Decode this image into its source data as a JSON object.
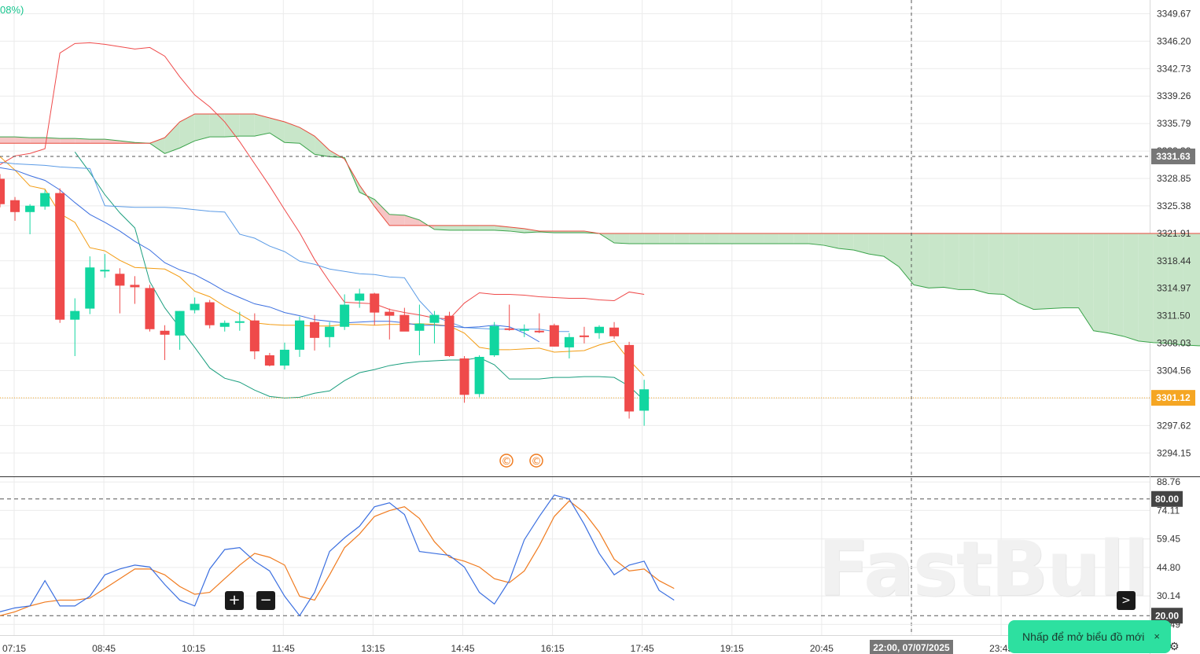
{
  "header": {
    "change_text": "08%)"
  },
  "watermark": "FastBull",
  "colors": {
    "grid": "#ebebeb",
    "up": "#12d6a0",
    "down": "#ef4a4a",
    "bb_upper": "#ef4a4a",
    "bb_mid": "#f39c12",
    "bb_lower": "#1a9e7e",
    "kijun": "#5b9be6",
    "tenkan": "#3b6fe0",
    "cloud_bull": "#c8e6c9",
    "cloud_bear": "#f6c5c5",
    "stoch_k": "#3b6fe0",
    "stoch_d": "#f07b1f",
    "last_price_tag": "#f5a623",
    "crosshair_tag": "#777777"
  },
  "chart_data": {
    "type": "candlestick",
    "main_y_ticks": [
      "3349.67",
      "3346.20",
      "3342.73",
      "3339.26",
      "3335.79",
      "3332.32",
      "3328.85",
      "3325.38",
      "3321.91",
      "3318.44",
      "3314.97",
      "3311.50",
      "3308.03",
      "3304.56",
      "3301.09",
      "3297.62",
      "3294.15"
    ],
    "main_ylim": [
      3291.2,
      3351.4
    ],
    "x_ticks": [
      "07:15",
      "08:45",
      "10:15",
      "11:45",
      "13:15",
      "14:45",
      "16:15",
      "17:45",
      "19:15",
      "20:45",
      "22:00, 07/07/2025",
      "23:45"
    ],
    "crosshair": {
      "price": "3331.63",
      "time": "22:00, 07/07/2025"
    },
    "last_price": "3301.12",
    "candles": [
      {
        "o": 3328.8,
        "h": 3329.4,
        "l": 3325.2,
        "c": 3325.6
      },
      {
        "o": 3326.1,
        "h": 3326.5,
        "l": 3323.5,
        "c": 3324.6
      },
      {
        "o": 3324.6,
        "h": 3325.6,
        "l": 3321.8,
        "c": 3325.4
      },
      {
        "o": 3325.3,
        "h": 3327.4,
        "l": 3324.9,
        "c": 3327.0
      },
      {
        "o": 3327.0,
        "h": 3327.6,
        "l": 3310.6,
        "c": 3311.0
      },
      {
        "o": 3311.0,
        "h": 3313.7,
        "l": 3306.4,
        "c": 3312.1
      },
      {
        "o": 3312.4,
        "h": 3319.0,
        "l": 3311.7,
        "c": 3317.6
      },
      {
        "o": 3317.1,
        "h": 3319.3,
        "l": 3316.3,
        "c": 3317.3
      },
      {
        "o": 3316.8,
        "h": 3317.5,
        "l": 3311.8,
        "c": 3315.3
      },
      {
        "o": 3315.4,
        "h": 3316.5,
        "l": 3313.0,
        "c": 3315.1
      },
      {
        "o": 3315.0,
        "h": 3315.4,
        "l": 3309.5,
        "c": 3309.8
      },
      {
        "o": 3309.6,
        "h": 3310.3,
        "l": 3305.9,
        "c": 3309.1
      },
      {
        "o": 3309.0,
        "h": 3312.1,
        "l": 3307.2,
        "c": 3312.1
      },
      {
        "o": 3312.2,
        "h": 3313.8,
        "l": 3311.8,
        "c": 3313.0
      },
      {
        "o": 3313.2,
        "h": 3313.5,
        "l": 3309.9,
        "c": 3310.3
      },
      {
        "o": 3310.1,
        "h": 3310.9,
        "l": 3309.5,
        "c": 3310.6
      },
      {
        "o": 3310.6,
        "h": 3312.0,
        "l": 3309.6,
        "c": 3310.8
      },
      {
        "o": 3310.9,
        "h": 3311.8,
        "l": 3306.0,
        "c": 3307.0
      },
      {
        "o": 3306.5,
        "h": 3306.8,
        "l": 3305.1,
        "c": 3305.2
      },
      {
        "o": 3305.2,
        "h": 3308.1,
        "l": 3304.7,
        "c": 3307.2
      },
      {
        "o": 3307.2,
        "h": 3311.4,
        "l": 3306.3,
        "c": 3310.9
      },
      {
        "o": 3310.7,
        "h": 3311.6,
        "l": 3307.1,
        "c": 3308.7
      },
      {
        "o": 3308.8,
        "h": 3310.7,
        "l": 3307.5,
        "c": 3310.1
      },
      {
        "o": 3310.1,
        "h": 3314.2,
        "l": 3309.7,
        "c": 3312.9
      },
      {
        "o": 3313.4,
        "h": 3314.9,
        "l": 3312.5,
        "c": 3314.3
      },
      {
        "o": 3314.3,
        "h": 3314.4,
        "l": 3310.3,
        "c": 3311.9
      },
      {
        "o": 3312.0,
        "h": 3312.4,
        "l": 3308.5,
        "c": 3311.5
      },
      {
        "o": 3311.6,
        "h": 3312.5,
        "l": 3309.6,
        "c": 3309.5
      },
      {
        "o": 3309.6,
        "h": 3312.9,
        "l": 3306.5,
        "c": 3310.5
      },
      {
        "o": 3310.6,
        "h": 3312.1,
        "l": 3308.0,
        "c": 3311.6
      },
      {
        "o": 3311.5,
        "h": 3312.0,
        "l": 3306.3,
        "c": 3306.4
      },
      {
        "o": 3306.1,
        "h": 3306.4,
        "l": 3300.5,
        "c": 3301.5
      },
      {
        "o": 3301.6,
        "h": 3306.5,
        "l": 3301.2,
        "c": 3306.3
      },
      {
        "o": 3306.5,
        "h": 3310.7,
        "l": 3306.3,
        "c": 3310.2
      },
      {
        "o": 3309.9,
        "h": 3312.9,
        "l": 3309.6,
        "c": 3309.7
      },
      {
        "o": 3309.6,
        "h": 3310.4,
        "l": 3308.8,
        "c": 3309.8
      },
      {
        "o": 3309.6,
        "h": 3311.8,
        "l": 3309.3,
        "c": 3309.4
      },
      {
        "o": 3310.3,
        "h": 3310.5,
        "l": 3307.6,
        "c": 3307.6
      },
      {
        "o": 3307.5,
        "h": 3309.3,
        "l": 3306.1,
        "c": 3308.8
      },
      {
        "o": 3309.0,
        "h": 3310.1,
        "l": 3308.0,
        "c": 3308.8
      },
      {
        "o": 3309.3,
        "h": 3310.3,
        "l": 3308.6,
        "c": 3310.1
      },
      {
        "o": 3310.0,
        "h": 3310.7,
        "l": 3308.6,
        "c": 3308.9
      },
      {
        "o": 3307.8,
        "h": 3308.2,
        "l": 3298.5,
        "c": 3299.4
      },
      {
        "o": 3299.5,
        "h": 3303.4,
        "l": 3297.6,
        "c": 3302.2
      }
    ],
    "bb_upper": [
      3330.6,
      3331.7,
      3332.0,
      3332.6,
      3344.7,
      3345.9,
      3346.0,
      3345.8,
      3345.5,
      3345.2,
      3345.4,
      3344.3,
      3341.7,
      3339.4,
      3337.9,
      3336.0,
      3333.5,
      3330.7,
      3327.9,
      3324.9,
      3322.0,
      3318.6,
      3315.8,
      3313.2,
      3313.1,
      3313.0,
      3312.3,
      3311.9,
      3311.6,
      3311.2,
      3311.1,
      3313.1,
      3314.4,
      3314.2,
      3314.2,
      3314.1,
      3313.9,
      3313.8,
      3313.7,
      3313.7,
      3313.5,
      3313.4,
      3314.5,
      3314.2
    ],
    "bb_mid": [
      3331.6,
      3329.9,
      3327.9,
      3327.5,
      3324.4,
      3323.3,
      3320.1,
      3319.7,
      3318.5,
      3317.6,
      3317.5,
      3317.4,
      3316.4,
      3314.6,
      3313.9,
      3312.7,
      3311.7,
      3310.6,
      3310.4,
      3310.3,
      3310.3,
      3310.2,
      3310.2,
      3310.4,
      3310.4,
      3310.3,
      3310.4,
      3310.4,
      3310.5,
      3310.4,
      3310.2,
      3309.3,
      3307.5,
      3307.2,
      3307.2,
      3307.3,
      3307.4,
      3306.9,
      3307.0,
      3307.1,
      3307.8,
      3308.3,
      3305.9,
      3303.9
    ],
    "bb_lower": [
      3332.2,
      3329.6,
      3326.8,
      3324.5,
      3322.6,
      3315.8,
      3312.5,
      3310.0,
      3307.5,
      3304.9,
      3303.6,
      3303.1,
      3302.1,
      3301.3,
      3301.1,
      3301.2,
      3301.7,
      3302.0,
      3303.3,
      3304.3,
      3304.7,
      3305.2,
      3305.5,
      3305.7,
      3305.8,
      3305.9,
      3305.9,
      3306.2,
      3305.3,
      3303.5,
      3303.5,
      3303.5,
      3303.7,
      3303.7,
      3303.8,
      3303.8,
      3303.7,
      3302.6,
      3300.8
    ],
    "tenkan": [
      3330.2,
      3329.9,
      3329.2,
      3328.6,
      3327.4,
      3325.8,
      3324.3,
      3323.3,
      3322.2,
      3320.9,
      3319.8,
      3318.2,
      3317.3,
      3316.7,
      3315.7,
      3314.6,
      3313.8,
      3313.0,
      3312.6,
      3311.9,
      3311.5,
      3311.0,
      3310.8,
      3310.6,
      3310.7,
      3310.8,
      3310.8,
      3310.6,
      3310.3,
      3310.3,
      3310.2,
      3310.0,
      3310.1,
      3310.3,
      3310.1,
      3309.3,
      3308.2
    ],
    "kijun": [
      3330.9,
      3330.7,
      3330.6,
      3330.5,
      3330.3,
      3330.2,
      3330.1,
      3325.4,
      3325.3,
      3325.2,
      3325.2,
      3325.2,
      3325.1,
      3324.9,
      3324.7,
      3324.6,
      3321.8,
      3321.3,
      3320.3,
      3319.6,
      3318.4,
      3318.0,
      3317.4,
      3317.1,
      3316.8,
      3316.7,
      3316.4,
      3316.3,
      3313.4,
      3311.4,
      3310.7,
      3310.0,
      3309.9,
      3309.8,
      3309.8,
      3309.8,
      3309.8,
      3309.5,
      3309.5
    ],
    "cloud_span_a": [
      3334.1,
      3334.1,
      3334.0,
      3334.0,
      3333.9,
      3333.9,
      3333.8,
      3333.8,
      3333.6,
      3333.4,
      3333.3,
      3332.0,
      3332.7,
      3333.6,
      3334.1,
      3334.1,
      3334.2,
      3334.2,
      3334.6,
      3333.4,
      3333.3,
      3331.9,
      3331.6,
      3331.5,
      3327.1,
      3326.2,
      3324.3,
      3324.2,
      3323.6,
      3322.4,
      3322.3,
      3322.3,
      3322.3,
      3322.3,
      3322.2,
      3322.0,
      3322.1,
      3322.0,
      3322.0,
      3322.0,
      3321.9,
      3320.7,
      3320.6,
      3320.6,
      3320.6,
      3320.6,
      3320.6,
      3320.6,
      3320.6,
      3320.6,
      3320.6,
      3320.6,
      3320.6,
      3320.6,
      3320.6,
      3320.4,
      3320.0,
      3319.8,
      3319.3,
      3319.0,
      3317.7,
      3315.4,
      3315.0,
      3315.1,
      3314.8,
      3314.8,
      3314.3,
      3314.2,
      3313.1,
      3312.3,
      3312.4,
      3312.5,
      3312.5,
      3309.6,
      3309.3,
      3308.9,
      3308.3,
      3308.1,
      3308.0,
      3307.8,
      3307.7,
      3307.7,
      3307.6,
      3307.6,
      3307.6,
      3307.6,
      3307.6,
      3307.5,
      3306.8,
      3305.6
    ],
    "cloud_span_b": [
      3333.3,
      3333.3,
      3333.3,
      3333.3,
      3333.3,
      3333.3,
      3333.3,
      3333.3,
      3333.3,
      3333.3,
      3333.3,
      3334.0,
      3336.0,
      3337.0,
      3337.0,
      3337.0,
      3337.0,
      3337.0,
      3336.5,
      3336.0,
      3335.3,
      3334.2,
      3332.4,
      3331.3,
      3328.0,
      3325.3,
      3322.9,
      3322.9,
      3322.9,
      3322.9,
      3322.9,
      3322.9,
      3322.9,
      3322.9,
      3322.7,
      3322.5,
      3322.2,
      3322.2,
      3322.2,
      3322.2,
      3321.9,
      3321.9,
      3321.9,
      3321.9,
      3321.9,
      3321.9,
      3321.9,
      3321.9,
      3321.9,
      3321.9,
      3321.9,
      3321.9,
      3321.9,
      3321.9,
      3321.9,
      3321.9,
      3321.9,
      3321.9,
      3321.9,
      3321.9,
      3321.9,
      3321.9,
      3321.9,
      3321.9,
      3321.9,
      3321.9,
      3321.9,
      3321.9,
      3321.9,
      3321.9,
      3321.9,
      3321.9,
      3321.9,
      3321.9,
      3321.9,
      3321.9,
      3321.9,
      3321.9,
      3321.9,
      3321.9,
      3321.9,
      3321.9,
      3321.9,
      3321.9,
      3321.9,
      3321.9,
      3321.9,
      3321.9,
      3319.6,
      3319.0
    ],
    "stoch_y_ticks": [
      "88.76",
      "74.11",
      "59.45",
      "44.80",
      "30.14",
      "15.49"
    ],
    "stoch_ylim": [
      10,
      90
    ],
    "stoch_levels": [
      "80.00",
      "20.00"
    ],
    "stoch_k": [
      22,
      24,
      25,
      38,
      25,
      25,
      30,
      41,
      44,
      46,
      45,
      36,
      28,
      25,
      44,
      54,
      55,
      48,
      43,
      30,
      20,
      32,
      53,
      60,
      66,
      76,
      78,
      72,
      53,
      52,
      51,
      45,
      32,
      26,
      38,
      59,
      71,
      82,
      80,
      67,
      52,
      41,
      46,
      48,
      33,
      28
    ],
    "stoch_d": [
      20,
      22,
      25,
      27,
      28,
      28,
      29,
      34,
      39,
      44,
      44,
      41,
      35,
      31,
      32,
      39,
      46,
      52,
      50,
      46,
      30,
      28,
      41,
      55,
      62,
      71,
      74,
      76,
      70,
      58,
      50,
      48,
      45,
      39,
      37,
      43,
      56,
      71,
      79,
      73,
      63,
      49,
      43,
      44,
      38,
      34
    ]
  },
  "controls": {
    "zoom_in": "+",
    "zoom_out": "−",
    "scroll_right": ">",
    "toast_label": "Nhấp để mở biểu đồ mới",
    "toast_close": "×"
  },
  "markers": [
    "©",
    "©"
  ]
}
